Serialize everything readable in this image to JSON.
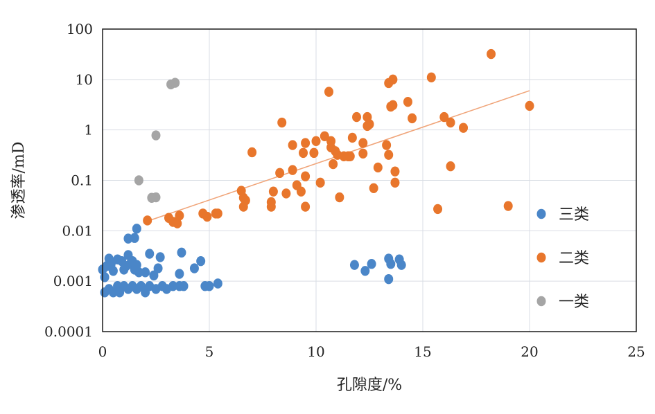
{
  "chart_data": {
    "type": "scatter",
    "xlabel": "孔隙度/%",
    "ylabel": "渗透率/mD",
    "xlim": [
      0,
      25
    ],
    "ylim": [
      0.0001,
      100
    ],
    "yscale": "log",
    "x_ticks": [
      "0",
      "5",
      "10",
      "15",
      "20",
      "25"
    ],
    "y_ticks": [
      "0.0001",
      "0.001",
      "0.01",
      "0.1",
      "1",
      "10",
      "100"
    ],
    "grid": true,
    "legend_position": "right",
    "series": [
      {
        "name": "三类",
        "color": "#4a86c8",
        "points": [
          [
            0.0,
            0.0017
          ],
          [
            0.1,
            0.0012
          ],
          [
            0.2,
            0.002
          ],
          [
            0.3,
            0.0028
          ],
          [
            0.4,
            0.0022
          ],
          [
            0.5,
            0.0016
          ],
          [
            0.7,
            0.0027
          ],
          [
            0.9,
            0.0025
          ],
          [
            1.0,
            0.0017
          ],
          [
            1.1,
            0.002
          ],
          [
            1.2,
            0.0033
          ],
          [
            1.3,
            0.0022
          ],
          [
            1.4,
            0.0025
          ],
          [
            1.5,
            0.0017
          ],
          [
            1.6,
            0.0021
          ],
          [
            1.7,
            0.0015
          ],
          [
            2.0,
            0.0015
          ],
          [
            2.2,
            0.0035
          ],
          [
            2.4,
            0.0013
          ],
          [
            2.6,
            0.0018
          ],
          [
            2.7,
            0.003
          ],
          [
            3.6,
            0.0014
          ],
          [
            3.7,
            0.0037
          ],
          [
            4.3,
            0.0018
          ],
          [
            4.6,
            0.0025
          ],
          [
            1.2,
            0.007
          ],
          [
            1.5,
            0.0072
          ],
          [
            1.6,
            0.011
          ],
          [
            0.1,
            0.0006
          ],
          [
            0.3,
            0.0007
          ],
          [
            0.5,
            0.0006
          ],
          [
            0.7,
            0.0008
          ],
          [
            0.8,
            0.0006
          ],
          [
            1.0,
            0.0008
          ],
          [
            1.2,
            0.0007
          ],
          [
            1.4,
            0.0008
          ],
          [
            1.6,
            0.0007
          ],
          [
            1.8,
            0.0008
          ],
          [
            2.0,
            0.0006
          ],
          [
            2.2,
            0.0008
          ],
          [
            2.5,
            0.0007
          ],
          [
            2.8,
            0.0008
          ],
          [
            3.0,
            0.0007
          ],
          [
            3.3,
            0.0008
          ],
          [
            3.6,
            0.0008
          ],
          [
            3.8,
            0.0008
          ],
          [
            4.8,
            0.0008
          ],
          [
            5.0,
            0.0008
          ],
          [
            5.4,
            0.0009
          ],
          [
            11.8,
            0.0021
          ],
          [
            12.3,
            0.0016
          ],
          [
            12.6,
            0.0022
          ],
          [
            13.4,
            0.0028
          ],
          [
            13.5,
            0.0022
          ],
          [
            13.4,
            0.0011
          ],
          [
            13.9,
            0.0027
          ],
          [
            14.0,
            0.0021
          ]
        ]
      },
      {
        "name": "二类",
        "color": "#e8762c",
        "points": [
          [
            2.1,
            0.016
          ],
          [
            3.1,
            0.018
          ],
          [
            3.3,
            0.015
          ],
          [
            3.5,
            0.014
          ],
          [
            3.6,
            0.02
          ],
          [
            4.7,
            0.022
          ],
          [
            4.9,
            0.019
          ],
          [
            5.3,
            0.022
          ],
          [
            5.4,
            0.022
          ],
          [
            6.5,
            0.062
          ],
          [
            6.6,
            0.045
          ],
          [
            6.6,
            0.03
          ],
          [
            6.7,
            0.04
          ],
          [
            7.0,
            0.36
          ],
          [
            7.9,
            0.037
          ],
          [
            7.9,
            0.03
          ],
          [
            8.0,
            0.06
          ],
          [
            8.3,
            0.14
          ],
          [
            8.4,
            1.4
          ],
          [
            8.6,
            0.055
          ],
          [
            8.9,
            0.5
          ],
          [
            8.9,
            0.16
          ],
          [
            9.1,
            0.08
          ],
          [
            9.3,
            0.06
          ],
          [
            9.4,
            0.35
          ],
          [
            9.5,
            0.55
          ],
          [
            9.5,
            0.12
          ],
          [
            9.5,
            0.03
          ],
          [
            9.9,
            0.35
          ],
          [
            10.0,
            0.6
          ],
          [
            10.2,
            0.09
          ],
          [
            10.4,
            0.75
          ],
          [
            10.6,
            5.7
          ],
          [
            10.7,
            0.6
          ],
          [
            10.7,
            0.45
          ],
          [
            10.8,
            0.21
          ],
          [
            10.9,
            0.38
          ],
          [
            11.0,
            0.32
          ],
          [
            11.1,
            0.046
          ],
          [
            11.3,
            0.3
          ],
          [
            11.5,
            0.3
          ],
          [
            11.6,
            0.3
          ],
          [
            11.7,
            0.7
          ],
          [
            11.9,
            1.8
          ],
          [
            12.2,
            0.55
          ],
          [
            12.2,
            0.34
          ],
          [
            12.4,
            1.8
          ],
          [
            12.4,
            1.2
          ],
          [
            12.5,
            1.3
          ],
          [
            12.7,
            0.07
          ],
          [
            12.9,
            0.18
          ],
          [
            13.3,
            0.5
          ],
          [
            13.4,
            8.5
          ],
          [
            13.4,
            0.32
          ],
          [
            13.5,
            2.9
          ],
          [
            13.6,
            3.1
          ],
          [
            13.6,
            10.0
          ],
          [
            13.7,
            0.15
          ],
          [
            13.7,
            0.09
          ],
          [
            14.3,
            3.6
          ],
          [
            14.5,
            1.7
          ],
          [
            15.4,
            11.0
          ],
          [
            15.7,
            0.027
          ],
          [
            16.0,
            1.8
          ],
          [
            16.3,
            1.4
          ],
          [
            16.3,
            0.19
          ],
          [
            16.9,
            1.1
          ],
          [
            18.2,
            32.0
          ],
          [
            19.0,
            0.031
          ],
          [
            20.0,
            3.0
          ]
        ]
      },
      {
        "name": "一类",
        "color": "#a5a5a5",
        "points": [
          [
            3.2,
            8.0
          ],
          [
            3.4,
            8.6
          ],
          [
            2.5,
            0.78
          ],
          [
            1.7,
            0.1
          ],
          [
            2.3,
            0.045
          ],
          [
            2.5,
            0.046
          ]
        ]
      }
    ],
    "trendline": {
      "color": "#f0a57a",
      "from": [
        2.0,
        0.015
      ],
      "to": [
        20.0,
        6.0
      ]
    }
  }
}
